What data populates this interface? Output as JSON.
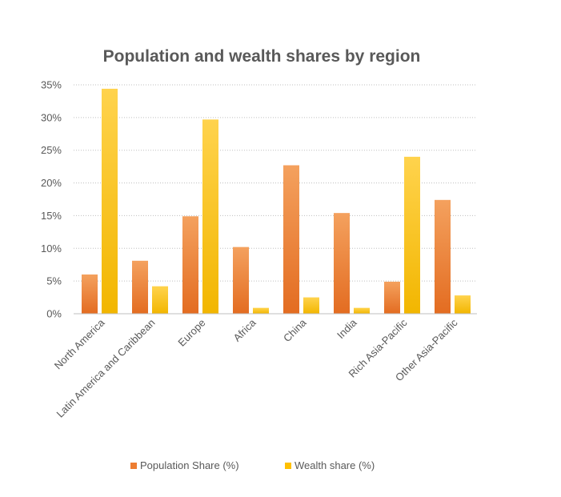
{
  "chart_data": {
    "type": "bar",
    "title": "Population and wealth shares by region",
    "xlabel": "",
    "ylabel": "",
    "categories": [
      "North America",
      "Latin America and Caribbean",
      "Europe",
      "Africa",
      "China",
      "India",
      "Rich Asia-Pacific",
      "Other Asia-Pacific"
    ],
    "series": [
      {
        "name": "Population Share (%)",
        "values": [
          6.0,
          8.1,
          14.9,
          10.2,
          22.7,
          15.4,
          4.9,
          17.4
        ],
        "color": "#ED7D31"
      },
      {
        "name": "Wealth share (%)",
        "values": [
          34.4,
          4.2,
          29.7,
          0.9,
          2.5,
          0.9,
          24.0,
          2.8
        ],
        "color": "#FFC000"
      }
    ],
    "ylim": [
      0,
      35
    ],
    "yticks": [
      0,
      5,
      10,
      15,
      20,
      25,
      30,
      35
    ],
    "ytick_labels": [
      "0%",
      "5%",
      "10%",
      "15%",
      "20%",
      "25%",
      "30%",
      "35%"
    ],
    "grid": "horizontal-dotted",
    "legend_position": "bottom"
  }
}
